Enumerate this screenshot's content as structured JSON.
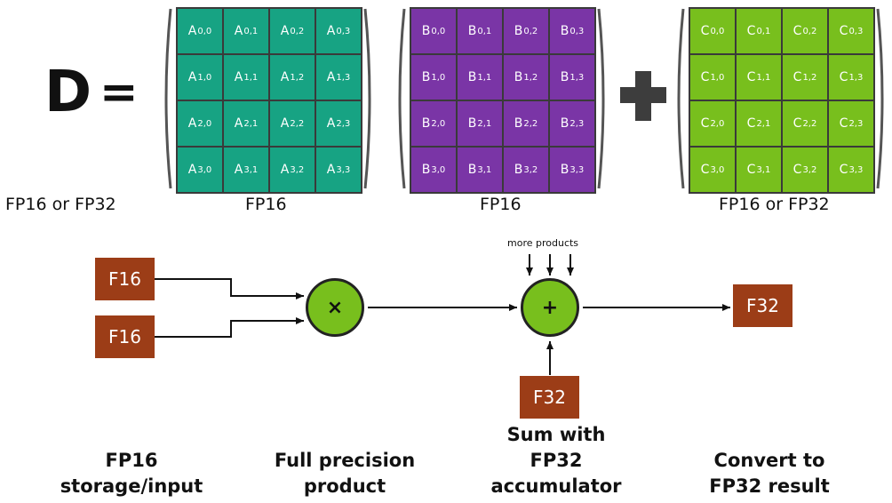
{
  "equation": {
    "lhs": "D",
    "equals": "=",
    "plus": "+"
  },
  "matrices": [
    {
      "letter": "A",
      "color": "#17a383",
      "label": "FP16"
    },
    {
      "letter": "B",
      "color": "#7a35a6",
      "label": "FP16"
    },
    {
      "letter": "C",
      "color": "#78bf1d",
      "label": "FP16 or FP32"
    }
  ],
  "d_label": "FP16 or FP32",
  "flow": {
    "input1": "F16",
    "input2": "F16",
    "multiply_symbol": "×",
    "add_symbol": "+",
    "more_products": "more products",
    "accumulator": "F32",
    "result": "F32"
  },
  "captions": {
    "storage": [
      "FP16",
      "storage/input"
    ],
    "product": [
      "Full precision",
      "product"
    ],
    "sum": [
      "Sum with",
      "FP32",
      "accumulator"
    ],
    "convert": [
      "Convert to",
      "FP32 result"
    ]
  },
  "colors": {
    "matrix_a": "#17a383",
    "matrix_b": "#7a35a6",
    "matrix_c": "#78bf1d",
    "f_box": "#9c3d17",
    "op_circle": "#78bf1d"
  }
}
